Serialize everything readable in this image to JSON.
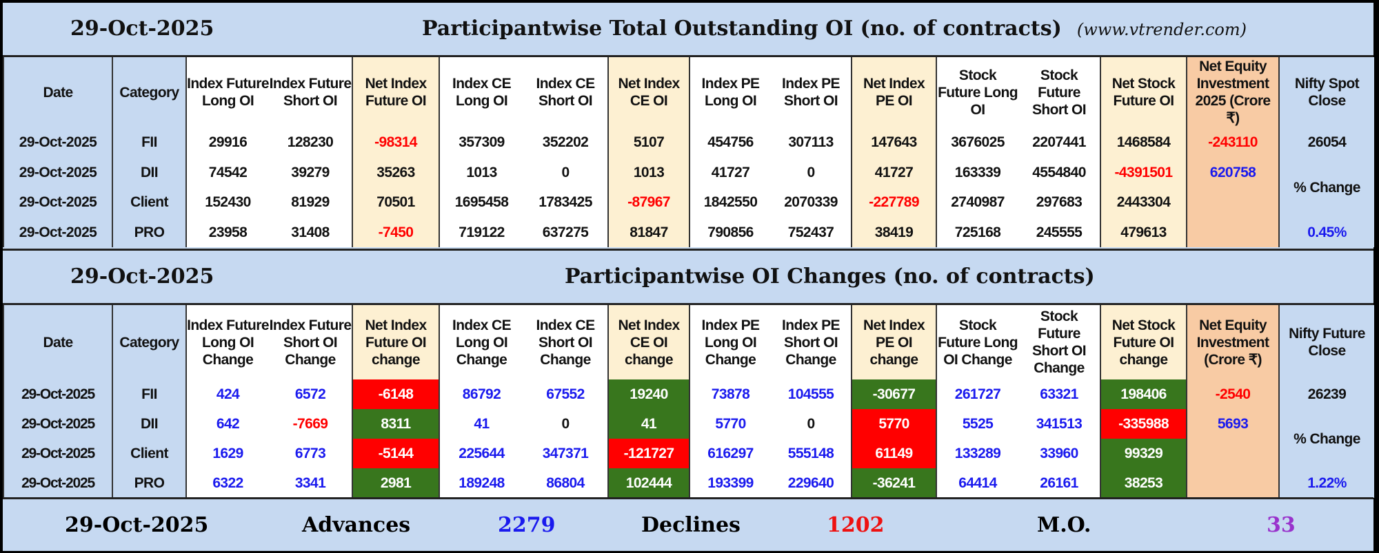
{
  "colors": {
    "header_blue": "#c6d9f1",
    "cream": "#fdf0d2",
    "peach": "#f8cba4",
    "red": "#ff0000",
    "blue": "#1a1aee",
    "green_bg": "#38761d",
    "red_bg": "#ff0000",
    "purple": "#9933cc"
  },
  "section1": {
    "date": "29-Oct-2025",
    "title": "Participantwise Total Outstanding OI (no. of contracts)",
    "site": "(www.vtrender.com)",
    "headers": [
      "Date",
      "Category",
      "Index Future Long OI",
      "Index Future Short OI",
      "Net Index Future OI",
      "Index CE Long OI",
      "Index CE Short OI",
      "Net Index CE OI",
      "Index PE Long OI",
      "Index PE Short OI",
      "Net Index PE OI",
      "Stock Future Long OI",
      "Stock Future Short OI",
      "Net Stock Future OI",
      "Net Equity Investment 2025 (Crore ₹)",
      "Nifty Spot Close"
    ],
    "rows": [
      {
        "cells": [
          {
            "v": "29-Oct-2025"
          },
          {
            "v": "FII"
          },
          {
            "v": "29916"
          },
          {
            "v": "128230"
          },
          {
            "v": "-98314",
            "c": "red"
          },
          {
            "v": "357309"
          },
          {
            "v": "352202"
          },
          {
            "v": "5107"
          },
          {
            "v": "454756"
          },
          {
            "v": "307113"
          },
          {
            "v": "147643"
          },
          {
            "v": "3676025"
          },
          {
            "v": "2207441"
          },
          {
            "v": "1468584"
          }
        ]
      },
      {
        "cells": [
          {
            "v": "29-Oct-2025"
          },
          {
            "v": "DII"
          },
          {
            "v": "74542"
          },
          {
            "v": "39279"
          },
          {
            "v": "35263"
          },
          {
            "v": "1013"
          },
          {
            "v": "0"
          },
          {
            "v": "1013"
          },
          {
            "v": "41727"
          },
          {
            "v": "0"
          },
          {
            "v": "41727"
          },
          {
            "v": "163339"
          },
          {
            "v": "4554840"
          },
          {
            "v": "-4391501",
            "c": "red"
          }
        ]
      },
      {
        "cells": [
          {
            "v": "29-Oct-2025"
          },
          {
            "v": "Client"
          },
          {
            "v": "152430"
          },
          {
            "v": "81929"
          },
          {
            "v": "70501"
          },
          {
            "v": "1695458"
          },
          {
            "v": "1783425"
          },
          {
            "v": "-87967",
            "c": "red"
          },
          {
            "v": "1842550"
          },
          {
            "v": "2070339"
          },
          {
            "v": "-227789",
            "c": "red"
          },
          {
            "v": "2740987"
          },
          {
            "v": "297683"
          },
          {
            "v": "2443304"
          }
        ]
      },
      {
        "cells": [
          {
            "v": "29-Oct-2025"
          },
          {
            "v": "PRO"
          },
          {
            "v": "23958"
          },
          {
            "v": "31408"
          },
          {
            "v": "-7450",
            "c": "red"
          },
          {
            "v": "719122"
          },
          {
            "v": "637275"
          },
          {
            "v": "81847"
          },
          {
            "v": "790856"
          },
          {
            "v": "752437"
          },
          {
            "v": "38419"
          },
          {
            "v": "725168"
          },
          {
            "v": "245555"
          },
          {
            "v": "479613"
          }
        ]
      }
    ],
    "net_equity": [
      {
        "v": "-243110",
        "c": "red"
      },
      {
        "v": "620758",
        "c": "blue"
      }
    ],
    "nifty": {
      "close": "26054",
      "change_label": "% Change",
      "change": "0.45%"
    }
  },
  "section2": {
    "date": "29-Oct-2025",
    "title": "Participantwise OI Changes (no. of contracts)",
    "headers": [
      "Date",
      "Category",
      "Index Future Long OI Change",
      "Index Future Short OI Change",
      "Net Index Future OI change",
      "Index CE Long OI Change",
      "Index CE Short OI Change",
      "Net Index CE OI change",
      "Index PE Long OI Change",
      "Index PE Short OI Change",
      "Net Index PE OI change",
      "Stock Future Long OI Change",
      "Stock Future Short OI Change",
      "Net Stock Future OI change",
      "Net Equity Investment (Crore ₹)",
      "Nifty Future Close"
    ],
    "rows": [
      {
        "cells": [
          {
            "v": "29-Oct-2025"
          },
          {
            "v": "FII"
          },
          {
            "v": "424",
            "c": "blue"
          },
          {
            "v": "6572",
            "c": "blue"
          },
          {
            "v": "-6148",
            "bg": "red_bg"
          },
          {
            "v": "86792",
            "c": "blue"
          },
          {
            "v": "67552",
            "c": "blue"
          },
          {
            "v": "19240",
            "bg": "green_bg"
          },
          {
            "v": "73878",
            "c": "blue"
          },
          {
            "v": "104555",
            "c": "blue"
          },
          {
            "v": "-30677",
            "bg": "green_bg"
          },
          {
            "v": "261727",
            "c": "blue"
          },
          {
            "v": "63321",
            "c": "blue"
          },
          {
            "v": "198406",
            "bg": "green_bg"
          }
        ]
      },
      {
        "cells": [
          {
            "v": "29-Oct-2025"
          },
          {
            "v": "DII"
          },
          {
            "v": "642",
            "c": "blue"
          },
          {
            "v": "-7669",
            "c": "red"
          },
          {
            "v": "8311",
            "bg": "green_bg"
          },
          {
            "v": "41",
            "c": "blue"
          },
          {
            "v": "0"
          },
          {
            "v": "41",
            "bg": "green_bg"
          },
          {
            "v": "5770",
            "c": "blue"
          },
          {
            "v": "0"
          },
          {
            "v": "5770",
            "bg": "red_bg"
          },
          {
            "v": "5525",
            "c": "blue"
          },
          {
            "v": "341513",
            "c": "blue"
          },
          {
            "v": "-335988",
            "bg": "red_bg"
          }
        ]
      },
      {
        "cells": [
          {
            "v": "29-Oct-2025"
          },
          {
            "v": "Client"
          },
          {
            "v": "1629",
            "c": "blue"
          },
          {
            "v": "6773",
            "c": "blue"
          },
          {
            "v": "-5144",
            "bg": "red_bg"
          },
          {
            "v": "225644",
            "c": "blue"
          },
          {
            "v": "347371",
            "c": "blue"
          },
          {
            "v": "-121727",
            "bg": "red_bg"
          },
          {
            "v": "616297",
            "c": "blue"
          },
          {
            "v": "555148",
            "c": "blue"
          },
          {
            "v": "61149",
            "bg": "red_bg"
          },
          {
            "v": "133289",
            "c": "blue"
          },
          {
            "v": "33960",
            "c": "blue"
          },
          {
            "v": "99329",
            "bg": "green_bg"
          }
        ]
      },
      {
        "cells": [
          {
            "v": "29-Oct-2025"
          },
          {
            "v": "PRO"
          },
          {
            "v": "6322",
            "c": "blue"
          },
          {
            "v": "3341",
            "c": "blue"
          },
          {
            "v": "2981",
            "bg": "green_bg"
          },
          {
            "v": "189248",
            "c": "blue"
          },
          {
            "v": "86804",
            "c": "blue"
          },
          {
            "v": "102444",
            "bg": "green_bg"
          },
          {
            "v": "193399",
            "c": "blue"
          },
          {
            "v": "229640",
            "c": "blue"
          },
          {
            "v": "-36241",
            "bg": "green_bg"
          },
          {
            "v": "64414",
            "c": "blue"
          },
          {
            "v": "26161",
            "c": "blue"
          },
          {
            "v": "38253",
            "bg": "green_bg"
          }
        ]
      }
    ],
    "net_equity": [
      {
        "v": "-2540",
        "c": "red"
      },
      {
        "v": "5693",
        "c": "blue"
      }
    ],
    "nifty": {
      "close": "26239",
      "change_label": "% Change",
      "change": "1.22%"
    }
  },
  "footer": {
    "date": "29-Oct-2025",
    "advances_label": "Advances",
    "advances": "2279",
    "declines_label": "Declines",
    "declines": "1202",
    "mo_label": "M.O.",
    "mo": "33"
  }
}
